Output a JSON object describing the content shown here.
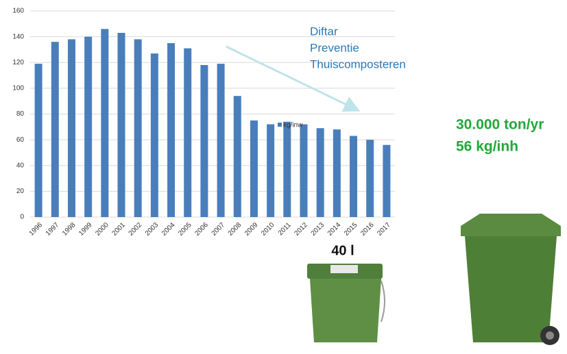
{
  "chart_data": {
    "type": "bar",
    "categories": [
      "1996",
      "1997",
      "1998",
      "1999",
      "2000",
      "2001",
      "2002",
      "2003",
      "2004",
      "2005",
      "2006",
      "2007",
      "2008",
      "2009",
      "2010",
      "2011",
      "2012",
      "2013",
      "2014",
      "2015",
      "2016",
      "2017"
    ],
    "series": [
      {
        "name": "kg/inw",
        "color": "#4a7ebb",
        "values": [
          119,
          136,
          138,
          140,
          146,
          143,
          138,
          127,
          135,
          131,
          118,
          119,
          94,
          75,
          72,
          74,
          72,
          69,
          68,
          63,
          60,
          56
        ]
      }
    ],
    "ylim": [
      0,
      160
    ],
    "yticks": [
      0,
      20,
      40,
      60,
      80,
      100,
      120,
      140,
      160
    ],
    "grid": true,
    "legend": "right",
    "annotations": [
      "Diftar",
      "Preventie",
      "Thuiscomposteren",
      "30.000 ton/yr",
      "56 kg/inh",
      "40 l"
    ]
  }
}
